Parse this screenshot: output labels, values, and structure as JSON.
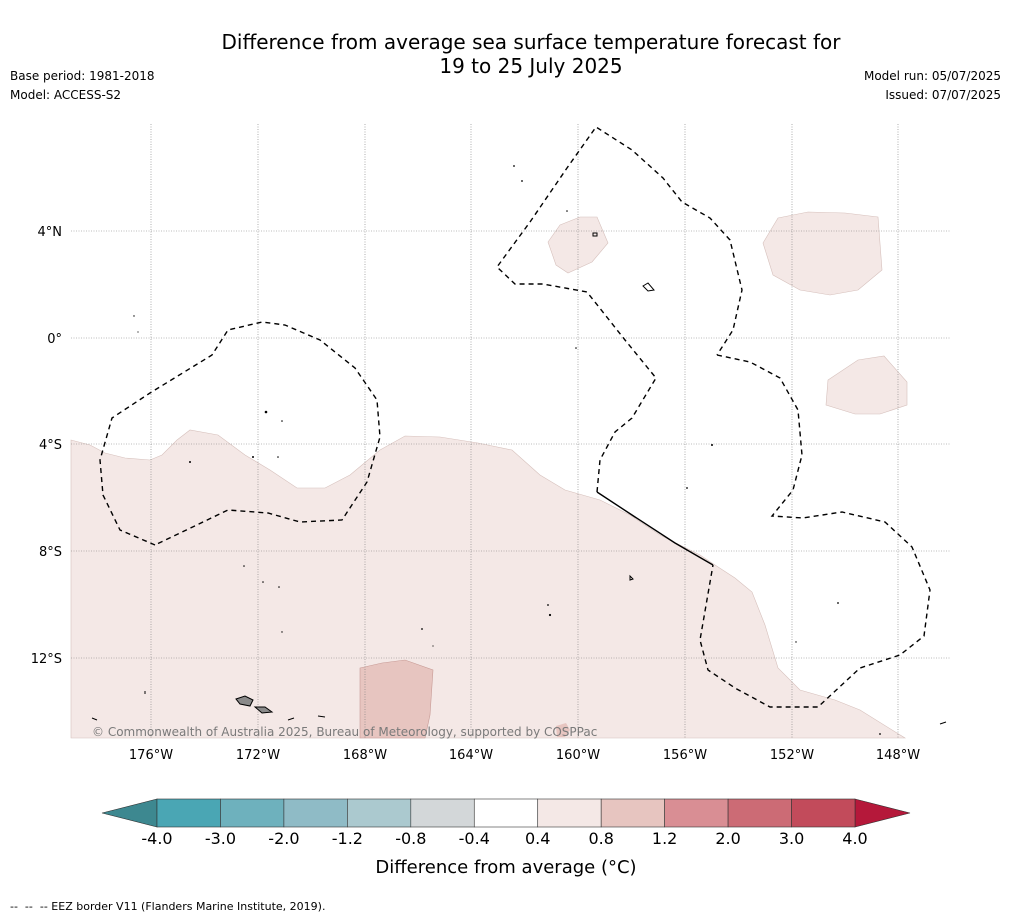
{
  "title_line1": "Difference from average sea surface temperature forecast for",
  "title_line2": "19 to 25 July 2025",
  "base_period": "Base period: 1981-2018",
  "model": "Model: ACCESS-S2",
  "model_run": "Model run: 05/07/2025",
  "issued": "Issued: 07/07/2025",
  "lat_labels": [
    "4°N",
    "0°",
    "4°S",
    "8°S",
    "12°S"
  ],
  "lon_labels": [
    "176°W",
    "172°W",
    "168°W",
    "164°W",
    "160°W",
    "156°W",
    "152°W",
    "148°W"
  ],
  "copyright": "© Commonwealth of Australia 2025, Bureau of Meteorology, supported by COSPPac",
  "colorbar": {
    "ticks": [
      "-4.0",
      "-3.0",
      "-2.0",
      "-1.2",
      "-0.8",
      "-0.4",
      "0.4",
      "0.8",
      "1.2",
      "2.0",
      "3.0",
      "4.0"
    ],
    "colors": [
      "#4aa6b4",
      "#6eb1bd",
      "#8fbbc6",
      "#abc9cf",
      "#d3d7d9",
      "#ffffff",
      "#f4e8e6",
      "#e7c5c0",
      "#d98e94",
      "#cc6b75",
      "#c24b5b"
    ],
    "under_color": "#3d8890",
    "over_color": "#b5183a",
    "label": "Difference from average (°C)"
  },
  "footer": "--  --  -- EEZ border V11 (Flanders Marine Institute, 2019)."
}
